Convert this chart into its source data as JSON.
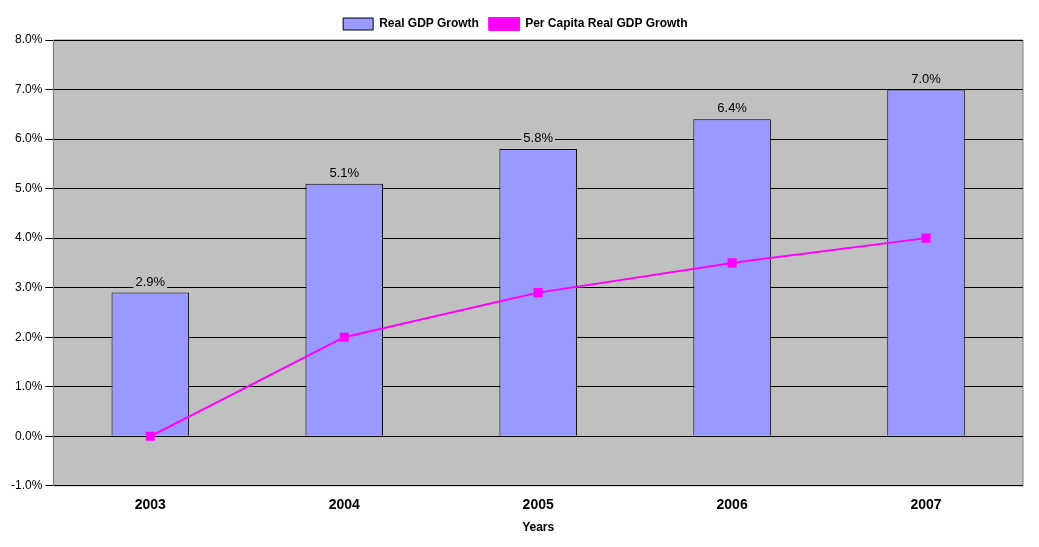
{
  "chart_data": {
    "type": "bar",
    "xlabel": "Years",
    "categories": [
      "2003",
      "2004",
      "2005",
      "2006",
      "2007"
    ],
    "series": [
      {
        "name": "Real GDP Growth",
        "color": "#9999ff",
        "values": [
          2.9,
          5.1,
          5.8,
          6.4,
          7.0
        ],
        "value_labels": [
          "2.9%",
          "5.1%",
          "5.8%",
          "6.4%",
          "7.0%"
        ]
      },
      {
        "name": "Per Capita Real GDP Growth",
        "type": "line",
        "color": "#ff00ff",
        "values": [
          0.0,
          2.0,
          2.9,
          3.5,
          4.0
        ],
        "marker": "square"
      }
    ],
    "ylim": [
      -1,
      8
    ],
    "yticks": [
      {
        "value": -1,
        "label": "-1.0%"
      },
      {
        "value": 0,
        "label": "0.0%"
      },
      {
        "value": 1,
        "label": "1.0%"
      },
      {
        "value": 2,
        "label": "2.0%"
      },
      {
        "value": 3,
        "label": "3.0%"
      },
      {
        "value": 4,
        "label": "4.0%"
      },
      {
        "value": 5,
        "label": "5.0%"
      },
      {
        "value": 6,
        "label": "6.0%"
      },
      {
        "value": 7,
        "label": "7.0%"
      },
      {
        "value": 8,
        "label": "8.0%"
      }
    ],
    "grid": "y",
    "legend": "top"
  }
}
